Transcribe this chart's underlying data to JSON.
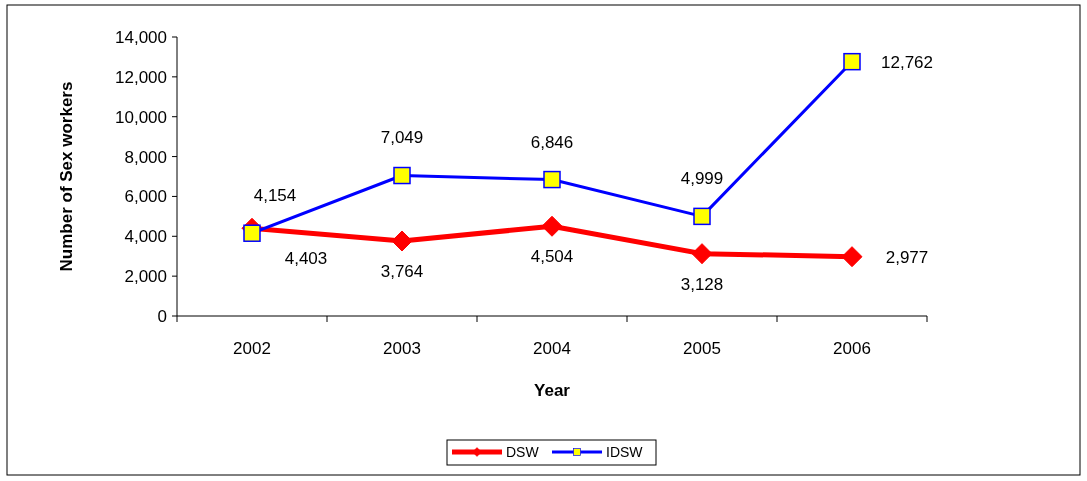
{
  "chart_data": {
    "type": "line",
    "xlabel": "Year",
    "ylabel": "Number of Sex workers",
    "categories": [
      "2002",
      "2003",
      "2004",
      "2005",
      "2006"
    ],
    "series": [
      {
        "name": "DSW",
        "color": "#ff0000",
        "marker": "diamond",
        "values": [
          4403,
          3764,
          4504,
          3128,
          2977
        ],
        "value_labels": [
          "4,403",
          "3,764",
          "4,504",
          "3,128",
          "2,977"
        ]
      },
      {
        "name": "IDSW",
        "color": "#0000ff",
        "marker": "square",
        "values": [
          4154,
          7049,
          6846,
          4999,
          12762
        ],
        "value_labels": [
          "4,154",
          "7,049",
          "6,846",
          "4,999",
          "12,762"
        ]
      }
    ],
    "ylim": [
      0,
      14000
    ],
    "yticks": [
      {
        "value": 0,
        "label": "0"
      },
      {
        "value": 2000,
        "label": "2,000"
      },
      {
        "value": 4000,
        "label": "4,000"
      },
      {
        "value": 6000,
        "label": "6,000"
      },
      {
        "value": 8000,
        "label": "8,000"
      },
      {
        "value": 10000,
        "label": "10,000"
      },
      {
        "value": 12000,
        "label": "12,000"
      },
      {
        "value": 14000,
        "label": "14,000"
      }
    ],
    "grid": false,
    "legend": "bottom"
  }
}
